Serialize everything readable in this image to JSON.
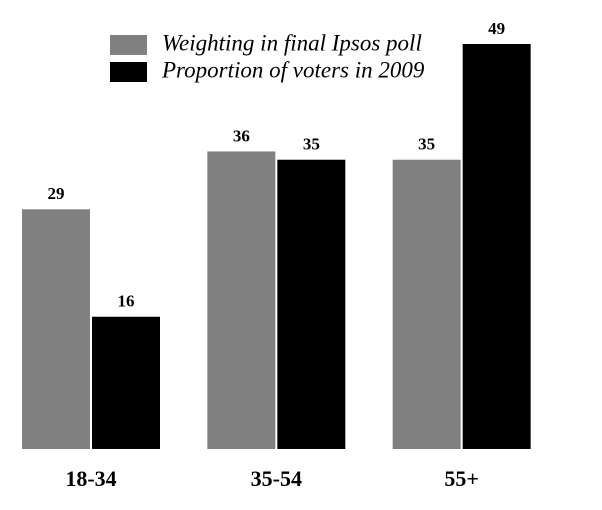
{
  "chart_data": {
    "type": "bar",
    "categories": [
      "18-34",
      "35-54",
      "55+"
    ],
    "series": [
      {
        "name": "Weighting in final Ipsos poll",
        "color": "#808080",
        "values": [
          29,
          36,
          35
        ]
      },
      {
        "name": "Proportion of voters in 2009",
        "color": "#000000",
        "values": [
          16,
          35,
          49
        ]
      }
    ]
  }
}
